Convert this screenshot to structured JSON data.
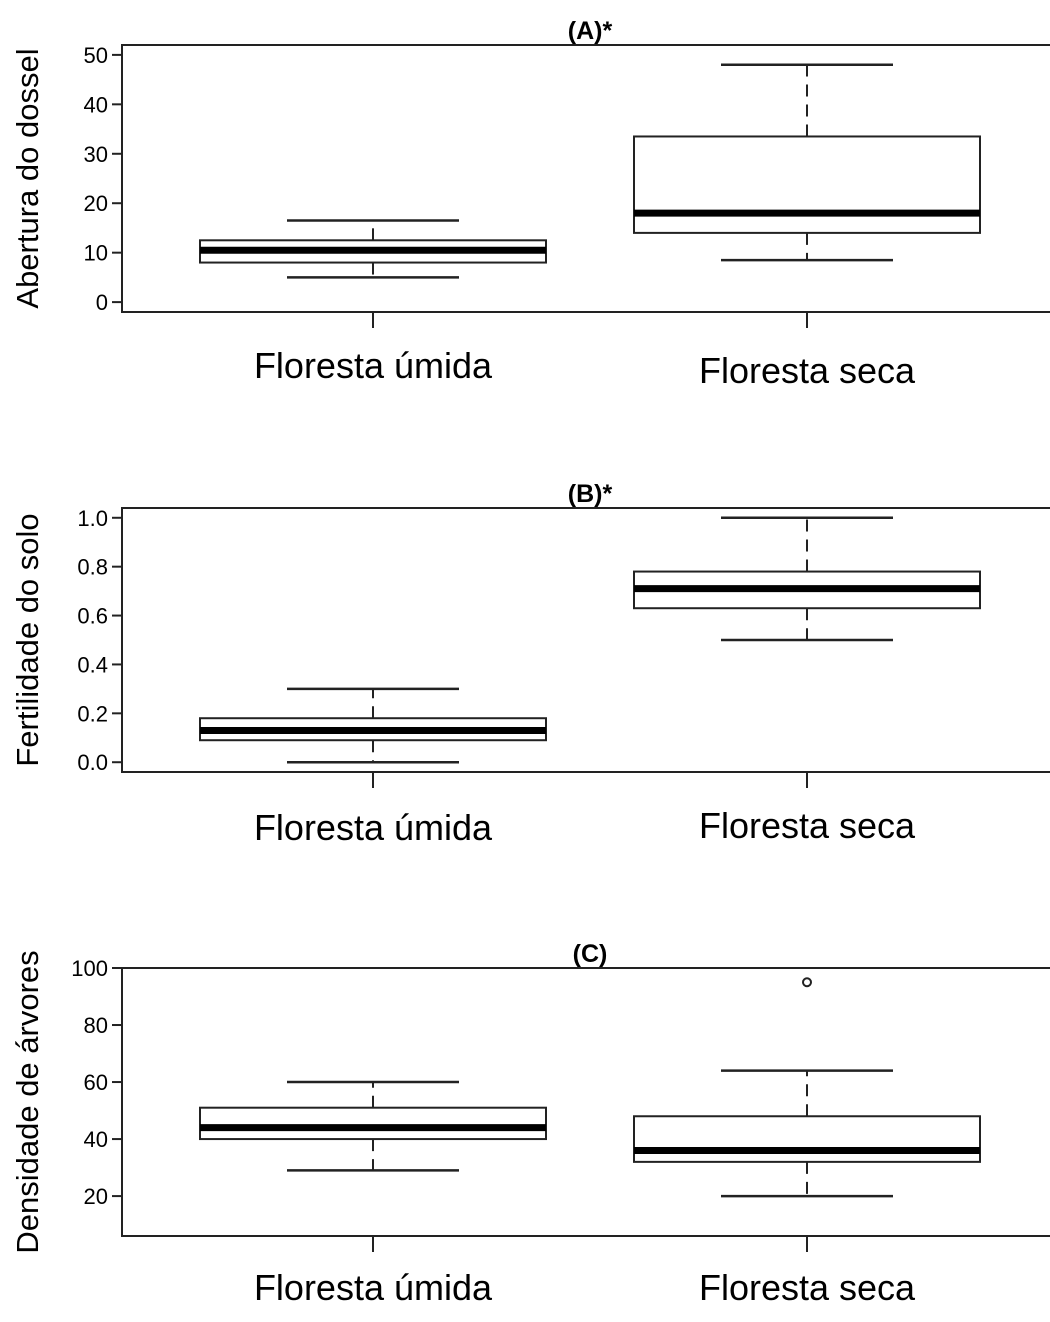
{
  "chart_data": [
    {
      "type": "boxplot",
      "title": "(A)*",
      "ylabel": "Abertura do dossel",
      "categories": [
        "Floresta úmida",
        "Floresta seca"
      ],
      "yticks": [
        "0",
        "10",
        "20",
        "30",
        "40",
        "50"
      ],
      "ylim": [
        -2,
        52
      ],
      "boxes": [
        {
          "category": "Floresta úmida",
          "min": 5,
          "q1": 8,
          "median": 10.5,
          "q3": 12.5,
          "max": 16.5,
          "outliers": []
        },
        {
          "category": "Floresta seca",
          "min": 8.5,
          "q1": 14,
          "median": 18,
          "q3": 33.5,
          "max": 48,
          "outliers": []
        }
      ]
    },
    {
      "type": "boxplot",
      "title": "(B)*",
      "ylabel": "Fertilidade do solo",
      "categories": [
        "Floresta úmida",
        "Floresta seca"
      ],
      "yticks": [
        "0.0",
        "0.2",
        "0.4",
        "0.6",
        "0.8",
        "1.0"
      ],
      "ylim": [
        -0.04,
        1.04
      ],
      "boxes": [
        {
          "category": "Floresta úmida",
          "min": 0.0,
          "q1": 0.09,
          "median": 0.13,
          "q3": 0.18,
          "max": 0.3,
          "outliers": []
        },
        {
          "category": "Floresta seca",
          "min": 0.5,
          "q1": 0.63,
          "median": 0.71,
          "q3": 0.78,
          "max": 1.0,
          "outliers": []
        }
      ]
    },
    {
      "type": "boxplot",
      "title": "(C)",
      "ylabel": "Densidade de árvores",
      "categories": [
        "Floresta úmida",
        "Floresta seca"
      ],
      "yticks": [
        "20",
        "40",
        "60",
        "80",
        "100"
      ],
      "ylim": [
        6,
        100
      ],
      "boxes": [
        {
          "category": "Floresta úmida",
          "min": 29,
          "q1": 40,
          "median": 44,
          "q3": 51,
          "max": 60,
          "outliers": []
        },
        {
          "category": "Floresta seca",
          "min": 20,
          "q1": 32,
          "median": 36,
          "q3": 48,
          "max": 64,
          "outliers": [
            95
          ]
        }
      ]
    }
  ]
}
